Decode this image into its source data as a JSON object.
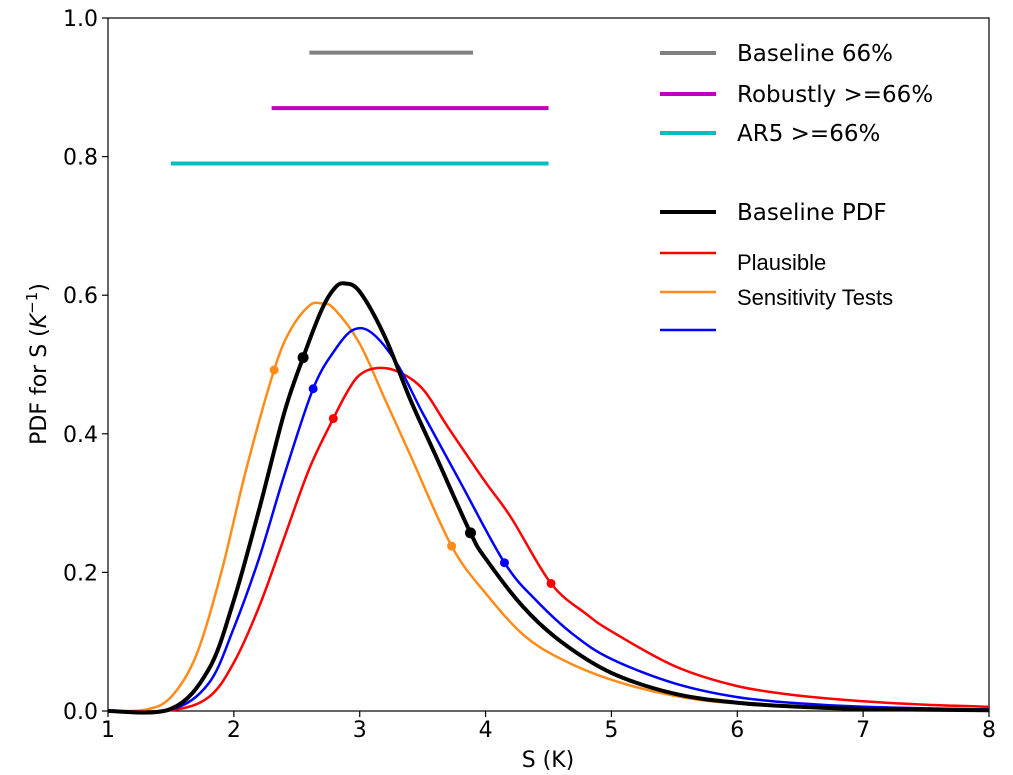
{
  "chart_data": {
    "type": "line",
    "xlabel": "S (K)",
    "ylabel_prefix": "PDF for S (",
    "ylabel_base": "K",
    "ylabel_sup": "−1",
    "ylabel_suffix": ")",
    "xlim": [
      1,
      8
    ],
    "ylim": [
      0,
      1.0
    ],
    "x_ticks": [
      1,
      2,
      3,
      4,
      5,
      6,
      7,
      8
    ],
    "x_tick_labels": [
      "1",
      "2",
      "3",
      "4",
      "5",
      "6",
      "7",
      "8"
    ],
    "y_ticks": [
      0,
      0.2,
      0.4,
      0.6,
      0.8,
      1.0
    ],
    "y_tick_labels": [
      "0.0",
      "0.2",
      "0.4",
      "0.6",
      "0.8",
      "1.0"
    ],
    "grid": false,
    "legend_position": "top-right",
    "ranges": [
      {
        "name": "Baseline 66%",
        "color": "#808080",
        "x_start": 2.6,
        "x_end": 3.9,
        "y": 0.95
      },
      {
        "name": "Robustly >=66%",
        "color": "#bf00bf",
        "x_start": 2.3,
        "x_end": 4.5,
        "y": 0.87
      },
      {
        "name": "AR5 >=66%",
        "color": "#00bfbf",
        "x_start": 1.5,
        "x_end": 4.5,
        "y": 0.79
      }
    ],
    "series": [
      {
        "name": "Baseline PDF",
        "color": "#000000",
        "width": 4,
        "points": [
          [
            1.0,
            0.0
          ],
          [
            1.5,
            0.003
          ],
          [
            1.8,
            0.06
          ],
          [
            2.0,
            0.16
          ],
          [
            2.2,
            0.29
          ],
          [
            2.4,
            0.43
          ],
          [
            2.55,
            0.51
          ],
          [
            2.7,
            0.58
          ],
          [
            2.8,
            0.61
          ],
          [
            2.88,
            0.617
          ],
          [
            3.0,
            0.605
          ],
          [
            3.2,
            0.54
          ],
          [
            3.4,
            0.45
          ],
          [
            3.6,
            0.37
          ],
          [
            3.88,
            0.257
          ],
          [
            4.0,
            0.22
          ],
          [
            4.3,
            0.15
          ],
          [
            4.6,
            0.1
          ],
          [
            5.0,
            0.055
          ],
          [
            5.5,
            0.025
          ],
          [
            6.0,
            0.012
          ],
          [
            6.5,
            0.006
          ],
          [
            7.0,
            0.003
          ],
          [
            8.0,
            0.001
          ]
        ],
        "markers": [
          [
            2.55,
            0.51
          ],
          [
            3.88,
            0.257
          ]
        ]
      },
      {
        "name": "",
        "color": "#ff0000",
        "width": 2.5,
        "points": [
          [
            1.0,
            0.0
          ],
          [
            1.5,
            0.001
          ],
          [
            1.8,
            0.02
          ],
          [
            2.0,
            0.07
          ],
          [
            2.2,
            0.15
          ],
          [
            2.4,
            0.25
          ],
          [
            2.6,
            0.35
          ],
          [
            2.79,
            0.422
          ],
          [
            2.9,
            0.46
          ],
          [
            3.0,
            0.485
          ],
          [
            3.14,
            0.495
          ],
          [
            3.3,
            0.49
          ],
          [
            3.5,
            0.465
          ],
          [
            3.7,
            0.41
          ],
          [
            4.0,
            0.33
          ],
          [
            4.2,
            0.28
          ],
          [
            4.52,
            0.184
          ],
          [
            4.8,
            0.14
          ],
          [
            5.0,
            0.115
          ],
          [
            5.5,
            0.065
          ],
          [
            6.0,
            0.036
          ],
          [
            6.5,
            0.022
          ],
          [
            7.0,
            0.014
          ],
          [
            7.5,
            0.009
          ],
          [
            8.0,
            0.006
          ]
        ],
        "markers": [
          [
            2.79,
            0.422
          ],
          [
            4.52,
            0.184
          ]
        ]
      },
      {
        "name": "",
        "color": "#ff8c1a",
        "width": 2.5,
        "points": [
          [
            1.0,
            0.0
          ],
          [
            1.3,
            0.002
          ],
          [
            1.5,
            0.02
          ],
          [
            1.7,
            0.08
          ],
          [
            1.9,
            0.2
          ],
          [
            2.1,
            0.35
          ],
          [
            2.32,
            0.492
          ],
          [
            2.45,
            0.55
          ],
          [
            2.6,
            0.585
          ],
          [
            2.7,
            0.588
          ],
          [
            2.8,
            0.58
          ],
          [
            3.0,
            0.53
          ],
          [
            3.2,
            0.45
          ],
          [
            3.4,
            0.37
          ],
          [
            3.73,
            0.238
          ],
          [
            4.0,
            0.17
          ],
          [
            4.3,
            0.11
          ],
          [
            4.6,
            0.075
          ],
          [
            5.0,
            0.045
          ],
          [
            5.5,
            0.022
          ],
          [
            6.0,
            0.011
          ],
          [
            7.0,
            0.003
          ],
          [
            8.0,
            0.001
          ]
        ],
        "markers": [
          [
            2.32,
            0.492
          ],
          [
            3.73,
            0.238
          ]
        ]
      },
      {
        "name": "",
        "color": "#0000ff",
        "width": 2.5,
        "points": [
          [
            1.0,
            0.0
          ],
          [
            1.5,
            0.002
          ],
          [
            1.8,
            0.04
          ],
          [
            2.0,
            0.12
          ],
          [
            2.2,
            0.22
          ],
          [
            2.4,
            0.34
          ],
          [
            2.63,
            0.465
          ],
          [
            2.8,
            0.52
          ],
          [
            2.95,
            0.55
          ],
          [
            3.1,
            0.545
          ],
          [
            3.3,
            0.5
          ],
          [
            3.5,
            0.43
          ],
          [
            3.8,
            0.33
          ],
          [
            4.15,
            0.214
          ],
          [
            4.4,
            0.16
          ],
          [
            4.7,
            0.11
          ],
          [
            5.0,
            0.075
          ],
          [
            5.5,
            0.04
          ],
          [
            6.0,
            0.02
          ],
          [
            6.5,
            0.011
          ],
          [
            7.0,
            0.006
          ],
          [
            8.0,
            0.002
          ]
        ],
        "markers": [
          [
            2.63,
            0.465
          ],
          [
            4.15,
            0.214
          ]
        ]
      }
    ],
    "legend_entries": [
      {
        "label": "Baseline 66%",
        "color": "#808080"
      },
      {
        "label": "Robustly >=66%",
        "color": "#bf00bf"
      },
      {
        "label": "AR5 >=66%",
        "color": "#00bfbf"
      },
      {
        "label": "Baseline PDF",
        "color": "#000000"
      },
      {
        "label": "Plausible",
        "color": "#ff0000"
      },
      {
        "label": "Sensitivity Tests",
        "color": "#ff8c1a"
      },
      {
        "label": "",
        "color": "#0000ff"
      }
    ]
  }
}
